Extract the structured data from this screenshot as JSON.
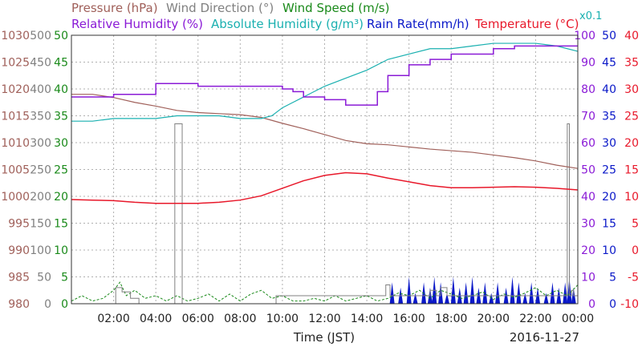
{
  "colors": {
    "pressure": "#a0605a",
    "wind_direction": "#808080",
    "wind_speed": "#1a8a1a",
    "relative_humidity": "#8a1ad6",
    "absolute_humidity": "#1ab0b0",
    "rain_rate": "#0a18c8",
    "temperature": "#e8182a",
    "grid": "#b0b0b0",
    "frame": "#333333"
  },
  "legend": {
    "pressure": "Pressure (hPa)",
    "wind_direction": "Wind Direction (°)",
    "wind_speed": "Wind Speed (m/s)",
    "relative_humidity": "Relative Humidity (%)",
    "absolute_humidity": "Absolute Humidity (g/m³)",
    "rain_rate": "Rain Rate(mm/h)",
    "temperature": "Temperature (°C)",
    "rain_scale_note": "x0.1"
  },
  "footer": {
    "xlabel": "Time (JST)",
    "date": "2016-11-27"
  },
  "chart_data": {
    "type": "line",
    "title": "",
    "xlabel": "Time (JST)",
    "x_range_hours": [
      0,
      24
    ],
    "x_ticks": [
      {
        "hour": 2,
        "label": "02:00"
      },
      {
        "hour": 4,
        "label": "04:00"
      },
      {
        "hour": 6,
        "label": "06:00"
      },
      {
        "hour": 8,
        "label": "08:00"
      },
      {
        "hour": 10,
        "label": "10:00"
      },
      {
        "hour": 12,
        "label": "12:00"
      },
      {
        "hour": 14,
        "label": "14:00"
      },
      {
        "hour": 16,
        "label": "16:00"
      },
      {
        "hour": 18,
        "label": "18:00"
      },
      {
        "hour": 20,
        "label": "20:00"
      },
      {
        "hour": 22,
        "label": "22:00"
      },
      {
        "hour": 24,
        "label": "00:00"
      }
    ],
    "grid": true,
    "axes": [
      {
        "key": "pressure",
        "label": "Pressure (hPa)",
        "range": [
          980,
          1030
        ],
        "ticks": [
          "980",
          "985",
          "990",
          "995",
          "1000",
          "1005",
          "1010",
          "1015",
          "1020",
          "1025",
          "1030"
        ]
      },
      {
        "key": "wind_direction",
        "label": "Wind Direction (°)",
        "range": [
          0,
          500
        ],
        "ticks": [
          "0",
          "50",
          "100",
          "150",
          "200",
          "250",
          "300",
          "350",
          "400",
          "450",
          "500"
        ]
      },
      {
        "key": "wind_speed",
        "label": "Wind Speed (m/s)",
        "range": [
          0,
          50
        ],
        "ticks": [
          "0",
          "5",
          "10",
          "15",
          "20",
          "25",
          "30",
          "35",
          "40",
          "45",
          "50"
        ]
      },
      {
        "key": "relative_humidity",
        "label": "Relative Humidity (%)",
        "range": [
          0,
          100
        ],
        "ticks": [
          "0",
          "10",
          "20",
          "30",
          "40",
          "50",
          "60",
          "70",
          "80",
          "90",
          "100"
        ]
      },
      {
        "key": "rain_rate",
        "label": "Rain Rate(mm/h)",
        "range": [
          0,
          50
        ],
        "ticks": [
          "0",
          "5",
          "10",
          "15",
          "20",
          "25",
          "30",
          "35",
          "40",
          "45",
          "50"
        ]
      },
      {
        "key": "temperature",
        "label": "Temperature (°C)",
        "range": [
          -10,
          40
        ],
        "ticks": [
          "-10",
          "-5",
          "0",
          "5",
          "10",
          "15",
          "20",
          "25",
          "30",
          "35",
          "40"
        ]
      }
    ],
    "series": [
      {
        "name": "Pressure (hPa)",
        "key": "pressure",
        "axis": "pressure",
        "x": [
          0,
          1,
          2,
          3,
          4,
          5,
          6,
          7,
          8,
          9,
          10,
          11,
          12,
          13,
          14,
          15,
          16,
          17,
          18,
          19,
          20,
          21,
          22,
          23,
          24
        ],
        "y": [
          1019,
          1019,
          1018.4,
          1017.5,
          1016.8,
          1016,
          1015.6,
          1015.4,
          1015.2,
          1014.7,
          1013.6,
          1012.6,
          1011.5,
          1010.4,
          1009.8,
          1009.6,
          1009.2,
          1008.8,
          1008.5,
          1008.2,
          1007.7,
          1007.2,
          1006.6,
          1005.8,
          1005.2
        ]
      },
      {
        "name": "Relative Humidity (%)",
        "key": "relative_humidity",
        "axis": "relative_humidity",
        "x": [
          0,
          1,
          2,
          3,
          4,
          5,
          6,
          7,
          8,
          9,
          10,
          10.5,
          11,
          12,
          13,
          13.5,
          14,
          14.5,
          15,
          16,
          17,
          18,
          19,
          20,
          21,
          22,
          23,
          24
        ],
        "y": [
          77,
          77,
          78,
          78,
          82,
          82,
          81,
          81,
          81,
          81,
          80,
          79,
          77,
          76,
          74,
          74,
          74,
          79,
          85,
          89,
          91,
          93,
          93,
          95,
          96,
          96,
          96,
          96
        ]
      },
      {
        "name": "Absolute Humidity (g/m³)",
        "key": "absolute_humidity",
        "axis": "relative_humidity",
        "x": [
          0,
          1,
          2,
          3,
          4,
          5,
          6,
          7,
          8,
          9,
          9.5,
          10,
          10.5,
          11,
          12,
          13,
          14,
          15,
          16,
          17,
          18,
          19,
          20,
          21,
          22,
          23,
          24
        ],
        "y": [
          68,
          68,
          69,
          69,
          69,
          70,
          70,
          70,
          69,
          69,
          70,
          73,
          75,
          77,
          81,
          84,
          87,
          91,
          93,
          95,
          95,
          96,
          97,
          97,
          97,
          96,
          94
        ]
      },
      {
        "name": "Temperature (°C)",
        "key": "temperature",
        "axis": "temperature",
        "x": [
          0,
          1,
          2,
          3,
          4,
          5,
          6,
          7,
          8,
          9,
          10,
          11,
          12,
          13,
          14,
          15,
          16,
          17,
          18,
          19,
          20,
          21,
          22,
          23,
          24
        ],
        "y": [
          9.4,
          9.3,
          9.2,
          8.9,
          8.7,
          8.7,
          8.7,
          8.9,
          9.3,
          10.1,
          11.5,
          12.9,
          13.9,
          14.4,
          14.2,
          13.4,
          12.7,
          12.0,
          11.6,
          11.6,
          11.7,
          11.8,
          11.7,
          11.5,
          11.2
        ]
      },
      {
        "name": "Wind Direction (°)",
        "key": "wind_direction",
        "axis": "wind_direction",
        "x": [
          0,
          1.9,
          2.1,
          2.4,
          2.8,
          3.2,
          4.8,
          4.9,
          4.95,
          5.2,
          5.25,
          5.4,
          6,
          8,
          9.6,
          9.7,
          14.8,
          14.9,
          15.1,
          15.4,
          15.8,
          16.2,
          16.7,
          16.9,
          17,
          17.3,
          17.5,
          17.8,
          18.4,
          19,
          20,
          21,
          21.9,
          22,
          22.3,
          23.2,
          23.4,
          23.5,
          23.6,
          23.7,
          23.8,
          24
        ],
        "y": [
          0,
          0,
          30,
          22,
          10,
          0,
          0,
          335,
          335,
          335,
          0,
          0,
          0,
          0,
          0,
          15,
          15,
          35,
          15,
          15,
          15,
          15,
          15,
          15,
          25,
          15,
          30,
          15,
          15,
          15,
          15,
          15,
          15,
          15,
          15,
          15,
          15,
          335,
          15,
          25,
          15,
          15
        ]
      },
      {
        "name": "Wind Speed (m/s)",
        "key": "wind_speed",
        "axis": "wind_speed",
        "x": [
          0,
          0.5,
          1,
          1.5,
          2,
          2.3,
          2.6,
          3,
          3.5,
          4,
          4.5,
          5,
          5.5,
          6,
          6.5,
          7,
          7.5,
          8,
          8.5,
          9,
          9.5,
          10,
          10.5,
          11,
          11.5,
          12,
          12.5,
          13,
          13.5,
          14,
          14.5,
          15,
          15.5,
          16,
          16.5,
          17,
          17.5,
          18,
          18.5,
          19,
          19.5,
          20,
          20.5,
          21,
          21.5,
          22,
          22.5,
          23,
          23.5,
          24
        ],
        "y": [
          0.5,
          1.5,
          0.5,
          1,
          2.5,
          4,
          1.5,
          2.5,
          1,
          1.5,
          0.5,
          1.5,
          0.5,
          1,
          1.8,
          0.5,
          1.8,
          0.5,
          1.8,
          2.5,
          1,
          1.5,
          0.5,
          0.5,
          1,
          0.5,
          1.5,
          0.5,
          1,
          1.5,
          0.5,
          1,
          2,
          1.5,
          2.5,
          1,
          2.5,
          1.8,
          1,
          1.5,
          2.2,
          0.8,
          1.8,
          1.2,
          2,
          3,
          1.5,
          2.5,
          1.5,
          3.5
        ]
      },
      {
        "name": "Rain Rate(mm/h)",
        "key": "rain_rate",
        "axis": "rain_rate",
        "x": [
          15.2,
          15.6,
          16.0,
          16.3,
          16.7,
          17.0,
          17.2,
          17.5,
          17.8,
          18.1,
          18.4,
          18.7,
          19.0,
          19.3,
          19.6,
          19.9,
          20.2,
          20.6,
          20.9,
          21.2,
          21.5,
          21.8,
          22.1,
          22.5,
          22.8,
          23.1,
          23.4,
          23.6,
          23.8
        ],
        "y": [
          4,
          3,
          5,
          2,
          4,
          3,
          5,
          4,
          2,
          5,
          3,
          4,
          5,
          3,
          4,
          2,
          4,
          3,
          5,
          4,
          2,
          4,
          3,
          2,
          4,
          3,
          4,
          5,
          3
        ]
      }
    ]
  }
}
